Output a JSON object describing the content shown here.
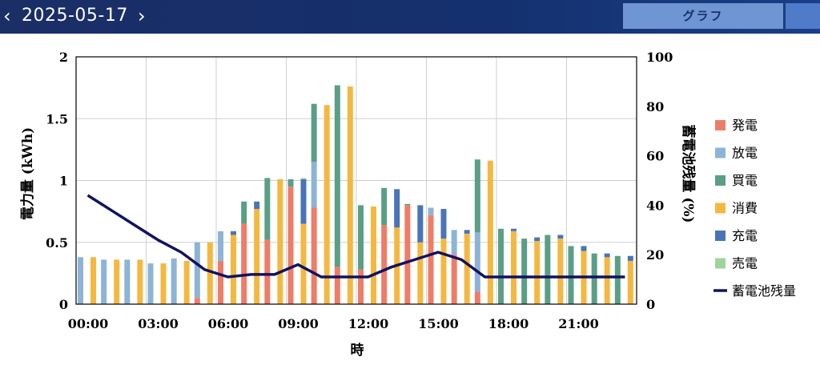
{
  "header": {
    "date": "2025-05-17",
    "prev_icon": "chevron-left-icon",
    "next_icon": "chevron-right-icon",
    "prev_glyph": "‹",
    "next_glyph": "›",
    "tab_label": "グラフ"
  },
  "colors": {
    "header_bg": "#1b2e66",
    "generation": "#ee7d67",
    "discharge": "#8db4d6",
    "purchase": "#5b9e86",
    "consumption": "#f4b841",
    "charge": "#4a74b8",
    "sale": "#9fd59b",
    "battery_line": "#12135e"
  },
  "chart_data": {
    "type": "bar",
    "xlabel": "時",
    "ylabel": "電力量 (kWh)",
    "y2label": "蓄電池残量 (%)",
    "ylim": [
      0,
      2
    ],
    "y2lim": [
      0,
      100
    ],
    "yticks": [
      "0",
      "0.5",
      "1",
      "1.5",
      "2"
    ],
    "y2ticks": [
      "0",
      "20",
      "40",
      "60",
      "80",
      "100"
    ],
    "x_ticks": [
      "00:00",
      "03:00",
      "06:00",
      "09:00",
      "12:00",
      "15:00",
      "18:00",
      "21:00"
    ],
    "grid": true,
    "legend_position": "right",
    "hours": [
      "00:00",
      "01:00",
      "02:00",
      "03:00",
      "04:00",
      "05:00",
      "06:00",
      "07:00",
      "08:00",
      "09:00",
      "10:00",
      "11:00",
      "12:00",
      "13:00",
      "14:00",
      "15:00",
      "16:00",
      "17:00",
      "18:00",
      "19:00",
      "20:00",
      "21:00",
      "22:00",
      "23:00"
    ],
    "series": [
      {
        "name": "発電",
        "key": "generation",
        "stack": "supply",
        "values": [
          0,
          0,
          0,
          0,
          0,
          0.05,
          0.35,
          0.65,
          0.52,
          0.95,
          0.78,
          0.3,
          0.28,
          0.64,
          0.8,
          0.72,
          0.4,
          0.1,
          0,
          0,
          0,
          0,
          0,
          0
        ]
      },
      {
        "name": "放電",
        "key": "discharge",
        "stack": "supply",
        "values": [
          0.38,
          0.36,
          0.36,
          0.33,
          0.37,
          0.45,
          0.24,
          0,
          0,
          0,
          0.37,
          0,
          0,
          0,
          0,
          0.06,
          0.2,
          0.48,
          0,
          0,
          0,
          0,
          0,
          0
        ]
      },
      {
        "name": "買電",
        "key": "purchase",
        "stack": "supply",
        "values": [
          0,
          0,
          0,
          0,
          0,
          0,
          0,
          0.18,
          0.5,
          0.06,
          0.47,
          1.47,
          0.52,
          0.3,
          0.01,
          0,
          0,
          0.59,
          0.61,
          0.53,
          0.56,
          0.47,
          0.41,
          0.39
        ]
      },
      {
        "name": "消費",
        "key": "consumption",
        "stack": "demand",
        "values": [
          0.38,
          0.36,
          0.36,
          0.33,
          0.35,
          0.5,
          0.56,
          0.77,
          1.01,
          0.65,
          1.61,
          1.76,
          0.79,
          0.62,
          0.5,
          0.53,
          0.57,
          1.16,
          0.59,
          0.51,
          0.53,
          0.43,
          0.38,
          0.35
        ]
      },
      {
        "name": "充電",
        "key": "charge",
        "stack": "demand",
        "values": [
          0,
          0,
          0,
          0,
          0,
          0,
          0.03,
          0.06,
          0,
          0.36,
          0,
          0,
          0,
          0.31,
          0.3,
          0.24,
          0.03,
          0,
          0.02,
          0.03,
          0.03,
          0.04,
          0.03,
          0.04
        ]
      },
      {
        "name": "売電",
        "key": "sale",
        "stack": "demand",
        "values": [
          0,
          0,
          0,
          0,
          0,
          0,
          0,
          0,
          0,
          0.01,
          0,
          0,
          0,
          0,
          0,
          0,
          0,
          0,
          0,
          0,
          0,
          0,
          0,
          0
        ]
      }
    ],
    "line": {
      "name": "蓄電池残量",
      "key": "battery_line",
      "x": [
        0,
        1,
        2,
        3,
        4,
        5,
        6,
        7,
        8,
        9,
        10,
        11,
        12,
        13,
        14,
        15,
        16,
        17,
        18,
        19,
        20,
        21,
        22,
        23
      ],
      "values": [
        44,
        38,
        32,
        26,
        21,
        14,
        11,
        12,
        12,
        16,
        11,
        11,
        11,
        15,
        18,
        21,
        18,
        11,
        11,
        11,
        11,
        11,
        11,
        11
      ]
    }
  }
}
